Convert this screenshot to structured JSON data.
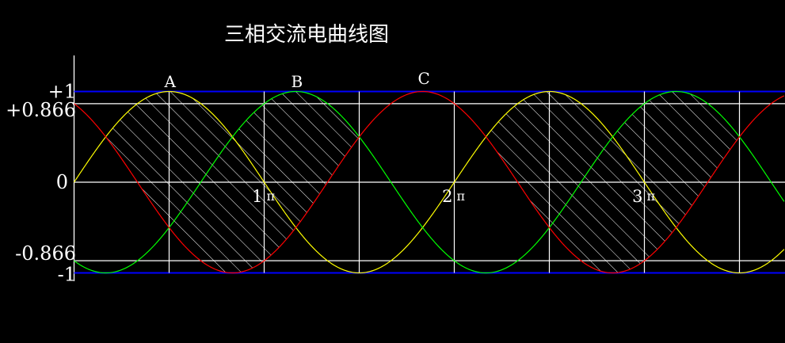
{
  "chart_data": {
    "type": "line",
    "title": "三相交流电曲线图",
    "x_unit": "π",
    "xlim": [
      0,
      3.74
    ],
    "ylim": [
      -1,
      1
    ],
    "y_ticks": [
      {
        "value": 1,
        "label": "+1"
      },
      {
        "value": 0.866,
        "label": "+0.866"
      },
      {
        "value": 0,
        "label": "0"
      },
      {
        "value": -0.866,
        "label": "-0.866"
      },
      {
        "value": -1,
        "label": "-1"
      }
    ],
    "x_gridlines_pi": [
      0.5,
      1,
      1.5,
      2,
      2.5,
      3,
      3.5
    ],
    "x_tick_labels": [
      {
        "value": 1,
        "num": "1",
        "unit": "π"
      },
      {
        "value": 2,
        "num": "2",
        "unit": "π"
      },
      {
        "value": 3,
        "num": "3",
        "unit": "π"
      }
    ],
    "series": [
      {
        "name": "A",
        "amplitude": 1,
        "phase_deg": 0,
        "color": "#ffff00",
        "label_at_pi": 0.5
      },
      {
        "name": "B",
        "amplitude": 1,
        "phase_deg": -120,
        "color": "#00ff00",
        "label_at_pi": 1.1667
      },
      {
        "name": "C",
        "amplitude": 1,
        "phase_deg": -240,
        "color": "#ff0000",
        "label_at_pi": 1.8333
      }
    ],
    "peak_line": {
      "value": 1,
      "color": "#0000ff"
    },
    "hatched_regions_pi": [
      [
        0.1667,
        1.5
      ],
      [
        2.1667,
        3.5
      ]
    ],
    "grid": true,
    "colors": {
      "background": "#000000",
      "grid": "#ffffff",
      "text": "#ffffff"
    }
  }
}
